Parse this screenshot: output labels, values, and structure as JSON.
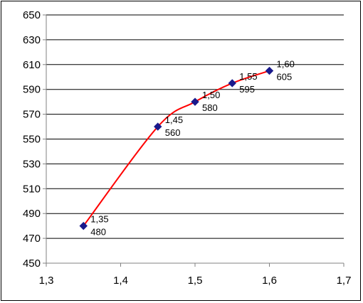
{
  "chart_data": {
    "type": "scatter",
    "title": "",
    "xlabel": "",
    "ylabel": "",
    "xlim": [
      1.3,
      1.7
    ],
    "ylim": [
      450,
      650
    ],
    "x_ticks": [
      "1,3",
      "1,4",
      "1,5",
      "1,6",
      "1,7"
    ],
    "y_ticks": [
      "450",
      "470",
      "490",
      "510",
      "530",
      "550",
      "570",
      "590",
      "610",
      "630",
      "650"
    ],
    "grid": "horizontal",
    "legend": "none",
    "series": [
      {
        "points": [
          {
            "x": 1.35,
            "y": 480,
            "label_x": "1,35",
            "label_y": "480"
          },
          {
            "x": 1.45,
            "y": 560,
            "label_x": "1,45",
            "label_y": "560"
          },
          {
            "x": 1.5,
            "y": 580,
            "label_x": "1,50",
            "label_y": "580"
          },
          {
            "x": 1.55,
            "y": 595,
            "label_x": "1,55",
            "label_y": "595"
          },
          {
            "x": 1.6,
            "y": 605,
            "label_x": "1,60",
            "label_y": "605"
          }
        ],
        "marker": "diamond",
        "marker_color": "#1a1a8c",
        "line": "smoothed",
        "line_color": "#ff0000"
      }
    ],
    "colors": {
      "plot_background": "#ffffff",
      "gridline": "#000000",
      "axis": "#808080"
    }
  }
}
